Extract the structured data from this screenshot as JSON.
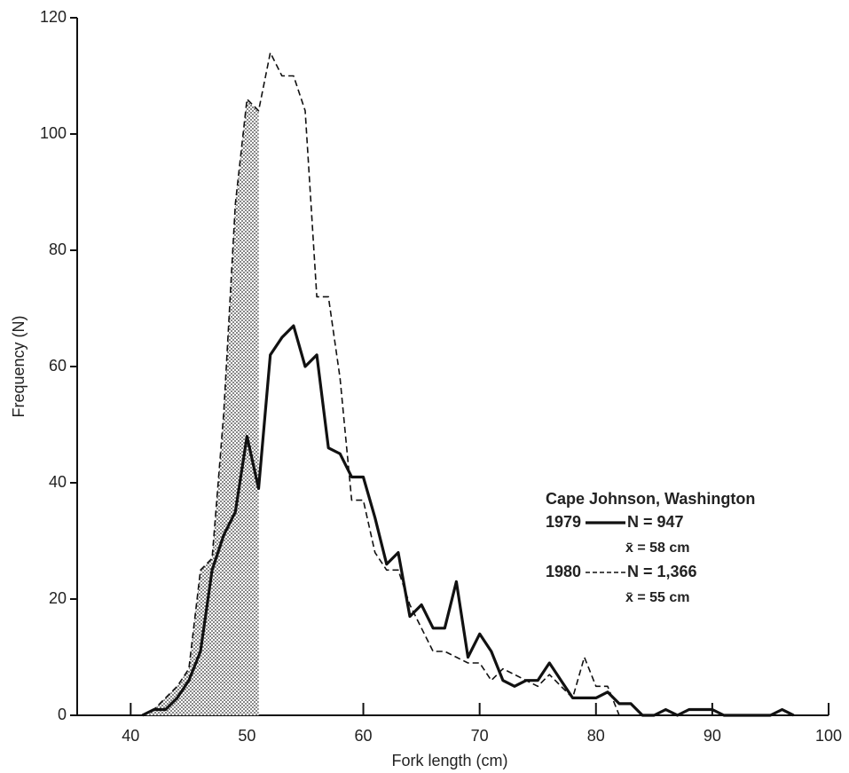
{
  "chart_data": {
    "type": "line",
    "x_label": "Fork length (cm)",
    "y_label": "Frequency (N)",
    "x": [
      41,
      42,
      43,
      44,
      45,
      46,
      47,
      48,
      49,
      50,
      51,
      52,
      53,
      54,
      55,
      56,
      57,
      58,
      59,
      60,
      61,
      62,
      63,
      64,
      65,
      66,
      67,
      68,
      69,
      70,
      71,
      72,
      73,
      74,
      75,
      76,
      77,
      78,
      79,
      80,
      81,
      82,
      83,
      84,
      85,
      86,
      87,
      88,
      89,
      90,
      91,
      92,
      93,
      94,
      95,
      96,
      97
    ],
    "series": [
      {
        "name": "1979",
        "n_label": "N = 947",
        "mean_label": "x̄ = 58 cm",
        "color": "#111111",
        "dash": false,
        "values": [
          0,
          1,
          1,
          3,
          6,
          11,
          25,
          31,
          35,
          48,
          39,
          62,
          65,
          67,
          60,
          62,
          46,
          45,
          41,
          41,
          34,
          26,
          28,
          17,
          19,
          15,
          15,
          23,
          10,
          14,
          11,
          6,
          5,
          6,
          6,
          9,
          6,
          3,
          3,
          3,
          4,
          2,
          2,
          0,
          0,
          1,
          0,
          1,
          1,
          1,
          0,
          0,
          0,
          0,
          0,
          1,
          0
        ]
      },
      {
        "name": "1980",
        "n_label": "N = 1,366",
        "mean_label": "x̄ = 55 cm",
        "color": "#111111",
        "dash": true,
        "values": [
          0,
          1,
          3,
          5,
          8,
          25,
          27,
          52,
          88,
          106,
          104,
          114,
          110,
          110,
          104,
          72,
          72,
          58,
          37,
          37,
          28,
          25,
          25,
          19,
          15,
          11,
          11,
          10,
          9,
          9,
          6,
          8,
          7,
          6,
          5,
          7,
          5,
          3,
          10,
          5,
          5,
          0,
          null,
          null,
          null,
          null,
          null,
          null,
          null,
          null,
          null,
          null,
          null,
          null,
          null,
          null,
          null
        ]
      }
    ],
    "legend_title": "Cape Johnson, Washington",
    "shade": {
      "series": 1,
      "to_x": 51
    },
    "xlim": [
      35.4,
      100
    ],
    "ylim": [
      0,
      120
    ],
    "xticks": [
      40,
      50,
      60,
      70,
      80,
      90,
      100
    ],
    "yticks": [
      0,
      20,
      40,
      60,
      80,
      100,
      120
    ],
    "grid": false
  }
}
